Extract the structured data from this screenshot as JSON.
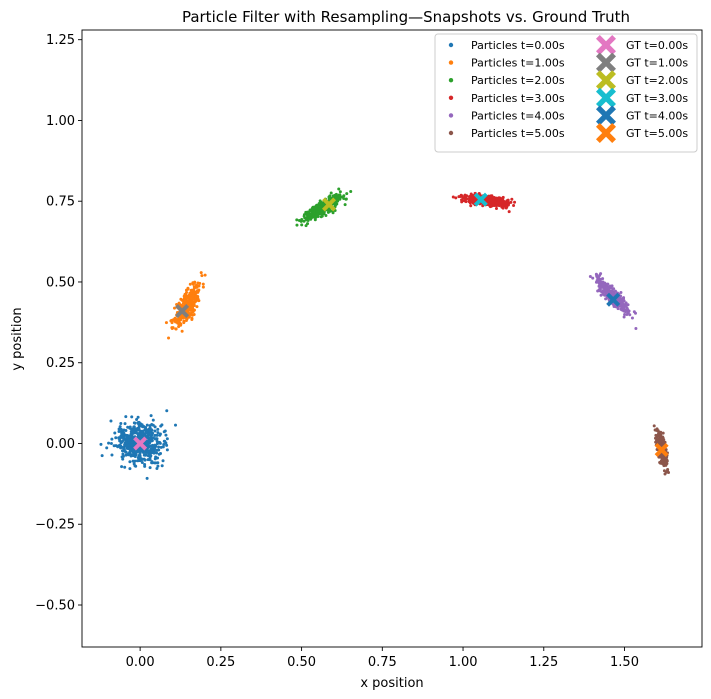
{
  "chart_data": {
    "type": "scatter",
    "title": "Particle Filter with Resampling—Snapshots vs. Ground Truth",
    "xlabel": "x position",
    "ylabel": "y position",
    "xlim": [
      -0.18,
      1.74
    ],
    "ylim": [
      -0.63,
      1.28
    ],
    "xticks": [
      0.0,
      0.25,
      0.5,
      0.75,
      1.0,
      1.25,
      1.5
    ],
    "xtick_labels": [
      "0.00",
      "0.25",
      "0.50",
      "0.75",
      "1.00",
      "1.25",
      "1.50"
    ],
    "yticks": [
      -0.5,
      -0.25,
      0.0,
      0.25,
      0.5,
      0.75,
      1.0,
      1.25
    ],
    "ytick_labels": [
      "−0.50",
      "−0.25",
      "0.00",
      "0.25",
      "0.50",
      "0.75",
      "1.00",
      "1.25"
    ],
    "grid": false,
    "legend": {
      "placement": "top-right",
      "columns": 2
    },
    "particle_series": [
      {
        "name": "Particles t=0.00s",
        "color": "#1f77b4",
        "center": [
          0.0,
          0.0
        ],
        "spread": [
          0.035,
          0.03
        ],
        "angle_deg": 0,
        "count": 600
      },
      {
        "name": "Particles t=1.00s",
        "color": "#ff7f0e",
        "center": [
          0.145,
          0.425
        ],
        "spread": [
          0.038,
          0.012
        ],
        "angle_deg": 62,
        "count": 350
      },
      {
        "name": "Particles t=2.00s",
        "color": "#2ca02c",
        "center": [
          0.565,
          0.73
        ],
        "spread": [
          0.035,
          0.009
        ],
        "angle_deg": 32,
        "count": 350
      },
      {
        "name": "Particles t=3.00s",
        "color": "#d62728",
        "center": [
          1.07,
          0.752
        ],
        "spread": [
          0.033,
          0.008
        ],
        "angle_deg": -8,
        "count": 350
      },
      {
        "name": "Particles t=4.00s",
        "color": "#9467bd",
        "center": [
          1.465,
          0.455
        ],
        "spread": [
          0.035,
          0.009
        ],
        "angle_deg": -48,
        "count": 350
      },
      {
        "name": "Particles t=5.00s",
        "color": "#8c564b",
        "center": [
          1.615,
          -0.02
        ],
        "spread": [
          0.026,
          0.006
        ],
        "angle_deg": -80,
        "count": 300
      }
    ],
    "ground_truth": [
      {
        "name": "GT t=0.00s",
        "color": "#e377c2",
        "x": 0.0,
        "y": 0.0
      },
      {
        "name": "GT t=1.00s",
        "color": "#7f7f7f",
        "x": 0.13,
        "y": 0.41
      },
      {
        "name": "GT t=2.00s",
        "color": "#bcbd22",
        "x": 0.585,
        "y": 0.74
      },
      {
        "name": "GT t=3.00s",
        "color": "#17becf",
        "x": 1.055,
        "y": 0.755
      },
      {
        "name": "GT t=4.00s",
        "color": "#1f77b4",
        "x": 1.465,
        "y": 0.445
      },
      {
        "name": "GT t=5.00s",
        "color": "#ff7f0e",
        "x": 1.615,
        "y": -0.02
      }
    ]
  }
}
